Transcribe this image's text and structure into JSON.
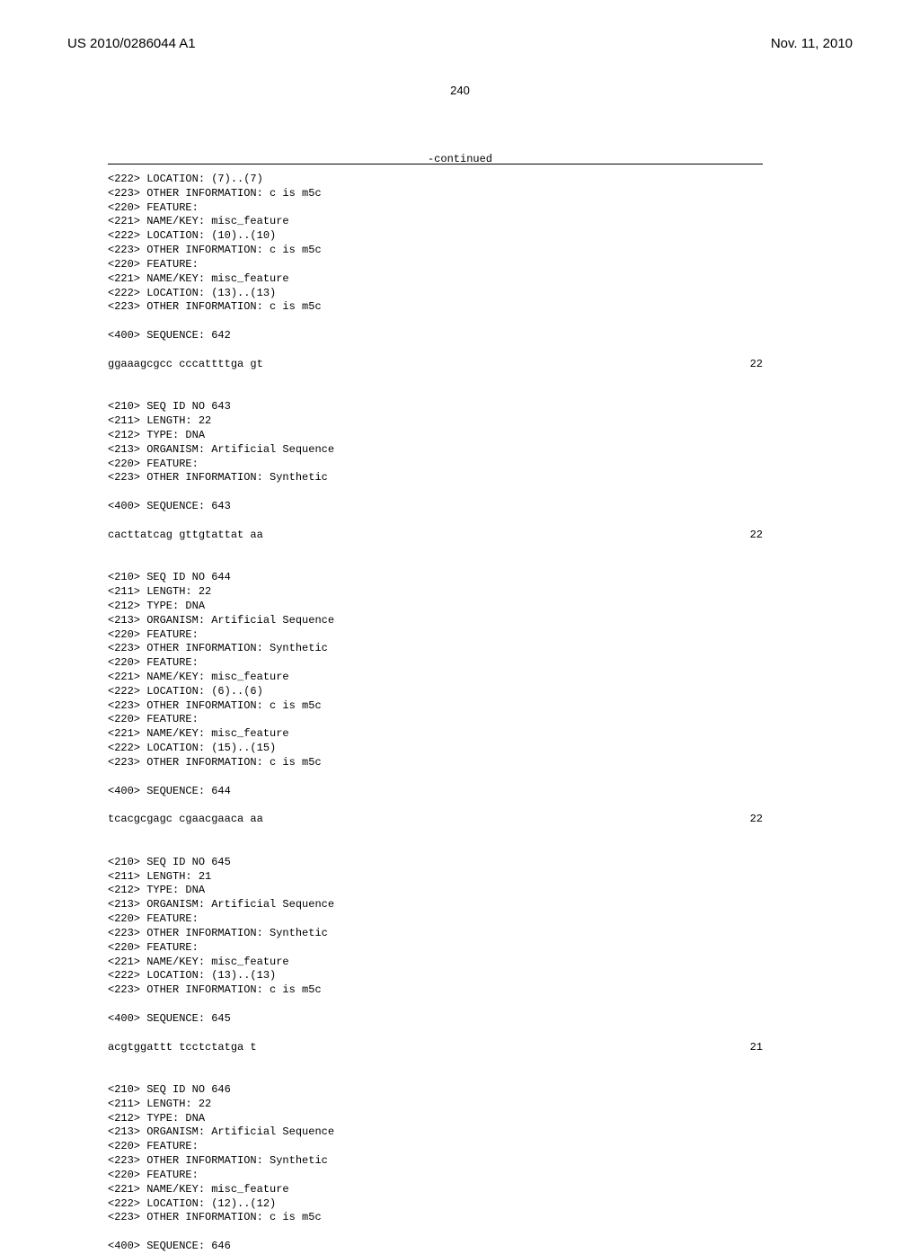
{
  "header": {
    "pub_number": "US 2010/0286044 A1",
    "pub_date": "Nov. 11, 2010",
    "page_number": "240",
    "continued_label": "-continued"
  },
  "blocks": [
    {
      "type": "line",
      "text": "<222> LOCATION: (7)..(7)"
    },
    {
      "type": "line",
      "text": "<223> OTHER INFORMATION: c is m5c"
    },
    {
      "type": "line",
      "text": "<220> FEATURE:"
    },
    {
      "type": "line",
      "text": "<221> NAME/KEY: misc_feature"
    },
    {
      "type": "line",
      "text": "<222> LOCATION: (10)..(10)"
    },
    {
      "type": "line",
      "text": "<223> OTHER INFORMATION: c is m5c"
    },
    {
      "type": "line",
      "text": "<220> FEATURE:"
    },
    {
      "type": "line",
      "text": "<221> NAME/KEY: misc_feature"
    },
    {
      "type": "line",
      "text": "<222> LOCATION: (13)..(13)"
    },
    {
      "type": "line",
      "text": "<223> OTHER INFORMATION: c is m5c"
    },
    {
      "type": "blank"
    },
    {
      "type": "line",
      "text": "<400> SEQUENCE: 642"
    },
    {
      "type": "blank"
    },
    {
      "type": "seq",
      "text": "ggaaagcgcc cccattttga gt",
      "num": "22"
    },
    {
      "type": "blank"
    },
    {
      "type": "blank"
    },
    {
      "type": "line",
      "text": "<210> SEQ ID NO 643"
    },
    {
      "type": "line",
      "text": "<211> LENGTH: 22"
    },
    {
      "type": "line",
      "text": "<212> TYPE: DNA"
    },
    {
      "type": "line",
      "text": "<213> ORGANISM: Artificial Sequence"
    },
    {
      "type": "line",
      "text": "<220> FEATURE:"
    },
    {
      "type": "line",
      "text": "<223> OTHER INFORMATION: Synthetic"
    },
    {
      "type": "blank"
    },
    {
      "type": "line",
      "text": "<400> SEQUENCE: 643"
    },
    {
      "type": "blank"
    },
    {
      "type": "seq",
      "text": "cacttatcag gttgtattat aa",
      "num": "22"
    },
    {
      "type": "blank"
    },
    {
      "type": "blank"
    },
    {
      "type": "line",
      "text": "<210> SEQ ID NO 644"
    },
    {
      "type": "line",
      "text": "<211> LENGTH: 22"
    },
    {
      "type": "line",
      "text": "<212> TYPE: DNA"
    },
    {
      "type": "line",
      "text": "<213> ORGANISM: Artificial Sequence"
    },
    {
      "type": "line",
      "text": "<220> FEATURE:"
    },
    {
      "type": "line",
      "text": "<223> OTHER INFORMATION: Synthetic"
    },
    {
      "type": "line",
      "text": "<220> FEATURE:"
    },
    {
      "type": "line",
      "text": "<221> NAME/KEY: misc_feature"
    },
    {
      "type": "line",
      "text": "<222> LOCATION: (6)..(6)"
    },
    {
      "type": "line",
      "text": "<223> OTHER INFORMATION: c is m5c"
    },
    {
      "type": "line",
      "text": "<220> FEATURE:"
    },
    {
      "type": "line",
      "text": "<221> NAME/KEY: misc_feature"
    },
    {
      "type": "line",
      "text": "<222> LOCATION: (15)..(15)"
    },
    {
      "type": "line",
      "text": "<223> OTHER INFORMATION: c is m5c"
    },
    {
      "type": "blank"
    },
    {
      "type": "line",
      "text": "<400> SEQUENCE: 644"
    },
    {
      "type": "blank"
    },
    {
      "type": "seq",
      "text": "tcacgcgagc cgaacgaaca aa",
      "num": "22"
    },
    {
      "type": "blank"
    },
    {
      "type": "blank"
    },
    {
      "type": "line",
      "text": "<210> SEQ ID NO 645"
    },
    {
      "type": "line",
      "text": "<211> LENGTH: 21"
    },
    {
      "type": "line",
      "text": "<212> TYPE: DNA"
    },
    {
      "type": "line",
      "text": "<213> ORGANISM: Artificial Sequence"
    },
    {
      "type": "line",
      "text": "<220> FEATURE:"
    },
    {
      "type": "line",
      "text": "<223> OTHER INFORMATION: Synthetic"
    },
    {
      "type": "line",
      "text": "<220> FEATURE:"
    },
    {
      "type": "line",
      "text": "<221> NAME/KEY: misc_feature"
    },
    {
      "type": "line",
      "text": "<222> LOCATION: (13)..(13)"
    },
    {
      "type": "line",
      "text": "<223> OTHER INFORMATION: c is m5c"
    },
    {
      "type": "blank"
    },
    {
      "type": "line",
      "text": "<400> SEQUENCE: 645"
    },
    {
      "type": "blank"
    },
    {
      "type": "seq",
      "text": "acgtggattt tcctctatga t",
      "num": "21"
    },
    {
      "type": "blank"
    },
    {
      "type": "blank"
    },
    {
      "type": "line",
      "text": "<210> SEQ ID NO 646"
    },
    {
      "type": "line",
      "text": "<211> LENGTH: 22"
    },
    {
      "type": "line",
      "text": "<212> TYPE: DNA"
    },
    {
      "type": "line",
      "text": "<213> ORGANISM: Artificial Sequence"
    },
    {
      "type": "line",
      "text": "<220> FEATURE:"
    },
    {
      "type": "line",
      "text": "<223> OTHER INFORMATION: Synthetic"
    },
    {
      "type": "line",
      "text": "<220> FEATURE:"
    },
    {
      "type": "line",
      "text": "<221> NAME/KEY: misc_feature"
    },
    {
      "type": "line",
      "text": "<222> LOCATION: (12)..(12)"
    },
    {
      "type": "line",
      "text": "<223> OTHER INFORMATION: c is m5c"
    },
    {
      "type": "blank"
    },
    {
      "type": "line",
      "text": "<400> SEQUENCE: 646"
    }
  ]
}
